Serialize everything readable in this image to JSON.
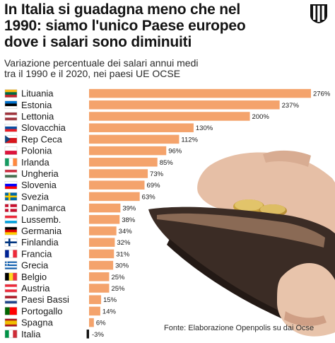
{
  "headline": [
    "In Italia si guadagna meno che nel",
    "1990: siamo l'unico Paese europeo",
    "dove i salari sono diminuiti"
  ],
  "logo": "striped-shield-logo",
  "chart_data": {
    "type": "bar",
    "orientation": "horizontal",
    "title": "Variazione percentuale dei salari annui medi tra il 1990 e il 2020, nei paesi UE OCSE",
    "subtitle_lines": [
      "Variazione percentuale dei salari annui medi",
      "tra il 1990 e il 2020, nei paesi UE OCSE"
    ],
    "categories": [
      "Lituania",
      "Estonia",
      "Lettonia",
      "Slovacchia",
      "Rep Ceca",
      "Polonia",
      "Irlanda",
      "Ungheria",
      "Slovenia",
      "Svezia",
      "Danimarca",
      "Lussemb.",
      "Germania",
      "Finlandia",
      "Francia",
      "Grecia",
      "Belgio",
      "Austria",
      "Paesi Bassi",
      "Portogallo",
      "Spagna",
      "Italia"
    ],
    "values": [
      276,
      237,
      200,
      130,
      112,
      96,
      85,
      73,
      69,
      63,
      39,
      38,
      34,
      32,
      31,
      30,
      25,
      25,
      15,
      14,
      6,
      -3
    ],
    "value_labels": [
      "276%",
      "237%",
      "200%",
      "130%",
      "112%",
      "96%",
      "85%",
      "73%",
      "69%",
      "63%",
      "39%",
      "38%",
      "34%",
      "32%",
      "31%",
      "30%",
      "25%",
      "25%",
      "15%",
      "14%",
      "6%",
      "-3%"
    ],
    "bar_color": "#f4a36c",
    "negative_color": "#111111",
    "flags": [
      {
        "type": "h",
        "colors": [
          "#fdb913",
          "#006a44",
          "#c1272d"
        ]
      },
      {
        "type": "h",
        "colors": [
          "#0072ce",
          "#000000",
          "#ffffff"
        ]
      },
      {
        "type": "h3",
        "colors": [
          "#9e3039",
          "#ffffff",
          "#9e3039"
        ]
      },
      {
        "type": "h",
        "colors": [
          "#ffffff",
          "#0b4ea2",
          "#ee1c25"
        ]
      },
      {
        "type": "h",
        "colors": [
          "#ffffff",
          "#d7141a",
          "#d7141a"
        ],
        "tri": "#11457e"
      },
      {
        "type": "h2",
        "colors": [
          "#ffffff",
          "#dc143c"
        ]
      },
      {
        "type": "v",
        "colors": [
          "#169b62",
          "#ffffff",
          "#ff883e"
        ]
      },
      {
        "type": "h",
        "colors": [
          "#cd2a3e",
          "#ffffff",
          "#436f4d"
        ]
      },
      {
        "type": "h",
        "colors": [
          "#ffffff",
          "#0000ff",
          "#ff0000"
        ]
      },
      {
        "type": "cross",
        "colors": [
          "#006aa7",
          "#fecc00"
        ]
      },
      {
        "type": "cross",
        "colors": [
          "#c8102e",
          "#ffffff"
        ]
      },
      {
        "type": "h",
        "colors": [
          "#ed2939",
          "#ffffff",
          "#00a1de"
        ]
      },
      {
        "type": "h",
        "colors": [
          "#000000",
          "#dd0000",
          "#ffce00"
        ]
      },
      {
        "type": "cross",
        "colors": [
          "#ffffff",
          "#003580"
        ]
      },
      {
        "type": "v",
        "colors": [
          "#002395",
          "#ffffff",
          "#ed2939"
        ]
      },
      {
        "type": "stripes",
        "colors": [
          "#0d5eaf",
          "#ffffff"
        ]
      },
      {
        "type": "v",
        "colors": [
          "#000000",
          "#fdda24",
          "#ef3340"
        ]
      },
      {
        "type": "h",
        "colors": [
          "#ed2939",
          "#ffffff",
          "#ed2939"
        ]
      },
      {
        "type": "h",
        "colors": [
          "#ae1c28",
          "#ffffff",
          "#21468b"
        ]
      },
      {
        "type": "v2",
        "colors": [
          "#006600",
          "#ff0000"
        ]
      },
      {
        "type": "h4",
        "colors": [
          "#aa151b",
          "#f1bf00",
          "#aa151b"
        ]
      },
      {
        "type": "v",
        "colors": [
          "#009246",
          "#ffffff",
          "#ce2b37"
        ]
      }
    ],
    "xlim": [
      -5,
      276
    ],
    "grid": false,
    "legend": "none"
  },
  "source": "Fonte: Elaborazione Openpolis su dai Ocse"
}
